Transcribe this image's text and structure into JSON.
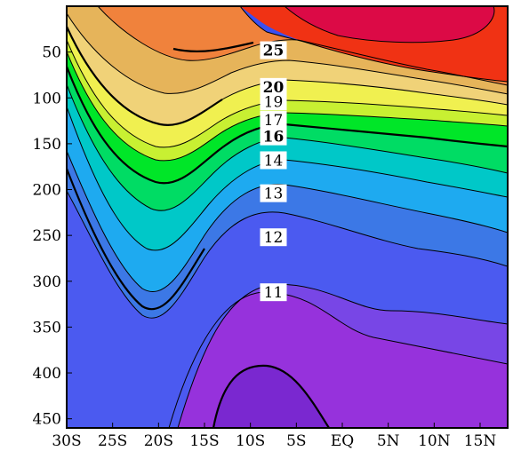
{
  "chart_data": {
    "type": "heatmap",
    "title": "",
    "xlabel": "",
    "ylabel": "",
    "x_ticks": [
      "30S",
      "25S",
      "20S",
      "15S",
      "10S",
      "5S",
      "EQ",
      "5N",
      "10N",
      "15N"
    ],
    "x_range": [
      -30,
      18
    ],
    "y_ticks": [
      50,
      100,
      150,
      200,
      250,
      300,
      350,
      400,
      450
    ],
    "y_range": [
      0,
      460
    ],
    "y_reversed": true,
    "contour_levels": [
      11,
      12,
      13,
      14,
      15,
      16,
      17,
      18,
      19,
      20,
      21,
      22,
      23,
      24,
      25,
      26
    ],
    "contour_labels": [
      {
        "text": "11",
        "x": -7.5,
        "y": 312,
        "bold": false
      },
      {
        "text": "12",
        "x": -7.5,
        "y": 252,
        "bold": false
      },
      {
        "text": "13",
        "x": -7.5,
        "y": 204,
        "bold": false
      },
      {
        "text": "14",
        "x": -7.5,
        "y": 168,
        "bold": false
      },
      {
        "text": "16",
        "x": -7.5,
        "y": 142,
        "bold": true
      },
      {
        "text": "17",
        "x": -7.5,
        "y": 124,
        "bold": false
      },
      {
        "text": "19",
        "x": -7.5,
        "y": 104,
        "bold": false
      },
      {
        "text": "20",
        "x": -7.5,
        "y": 88,
        "bold": true
      },
      {
        "text": "25",
        "x": -7.5,
        "y": 48,
        "bold": true
      }
    ],
    "colors": {
      "bg": "#3c50f0",
      "bands": [
        "#9632dc",
        "#7a3ce6",
        "#4b5af0",
        "#3c78e6",
        "#1eaaf0",
        "#00c8c8",
        "#00d28c",
        "#00dc3c",
        "#a0e632",
        "#e6dc32",
        "#f0c864",
        "#e6a050",
        "#f08232",
        "#f03c14",
        "#dc0a3c"
      ]
    }
  }
}
